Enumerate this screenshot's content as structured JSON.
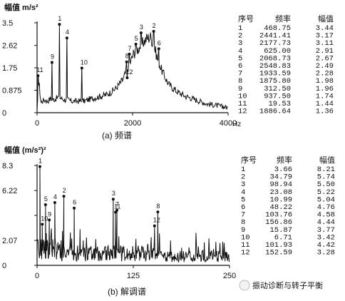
{
  "chart_data": [
    {
      "type": "line",
      "ylabel": "幅值 m/s²",
      "xlabel": "Hz",
      "caption": "(a) 频谱",
      "xlim": [
        0,
        4000
      ],
      "ylim": [
        0,
        3.5
      ],
      "xticks": [
        0,
        2000,
        4000
      ],
      "yticks": [
        0,
        0.875,
        1.75,
        2.62,
        3.5
      ],
      "ytick_labels": [
        "0",
        "0.875",
        "1.75",
        "2.62",
        "3.5"
      ],
      "table": {
        "headers": [
          "序号",
          "频率",
          "幅值"
        ],
        "rows": [
          [
            "1",
            "468.75",
            "3.44"
          ],
          [
            "2",
            "2441.41",
            "3.17"
          ],
          [
            "3",
            "2177.73",
            "3.11"
          ],
          [
            "4",
            "625.00",
            "2.91"
          ],
          [
            "5",
            "2068.73",
            "2.67"
          ],
          [
            "6",
            "2548.83",
            "2.49"
          ],
          [
            "7",
            "1933.59",
            "2.28"
          ],
          [
            "8",
            "1875.80",
            "1.98"
          ],
          [
            "9",
            "312.50",
            "1.96"
          ],
          [
            "10",
            "937.50",
            "1.74"
          ],
          [
            "11",
            "19.53",
            "1.44"
          ],
          [
            "12",
            "1886.64",
            "1.36"
          ]
        ]
      },
      "peaks": [
        {
          "label": "1",
          "x": 468.75,
          "y": 3.44
        },
        {
          "label": "2",
          "x": 2441.41,
          "y": 3.17
        },
        {
          "label": "3",
          "x": 2177.73,
          "y": 3.11
        },
        {
          "label": "4",
          "x": 625.0,
          "y": 2.91
        },
        {
          "label": "5",
          "x": 2068.73,
          "y": 2.67
        },
        {
          "label": "6",
          "x": 2548.83,
          "y": 2.49
        },
        {
          "label": "7",
          "x": 1933.59,
          "y": 2.28
        },
        {
          "label": "8",
          "x": 1875.8,
          "y": 1.98
        },
        {
          "label": "9",
          "x": 312.5,
          "y": 1.96
        },
        {
          "label": "10",
          "x": 937.5,
          "y": 1.74
        },
        {
          "label": "11",
          "x": 19.53,
          "y": 1.44
        },
        {
          "label": "12",
          "x": 1886.64,
          "y": 1.36
        }
      ],
      "baseline": [
        [
          0,
          0.05
        ],
        [
          40,
          1.2
        ],
        [
          80,
          0.4
        ],
        [
          150,
          0.5
        ],
        [
          220,
          0.45
        ],
        [
          280,
          0.55
        ],
        [
          330,
          0.5
        ],
        [
          400,
          0.55
        ],
        [
          440,
          0.6
        ],
        [
          520,
          0.55
        ],
        [
          580,
          0.5
        ],
        [
          660,
          0.5
        ],
        [
          720,
          0.45
        ],
        [
          800,
          0.45
        ],
        [
          870,
          0.45
        ],
        [
          980,
          0.45
        ],
        [
          1060,
          0.5
        ],
        [
          1150,
          0.55
        ],
        [
          1250,
          0.6
        ],
        [
          1350,
          0.65
        ],
        [
          1450,
          0.7
        ],
        [
          1550,
          0.8
        ],
        [
          1650,
          0.95
        ],
        [
          1720,
          1.1
        ],
        [
          1800,
          1.3
        ],
        [
          1960,
          2.0
        ],
        [
          2020,
          2.3
        ],
        [
          2120,
          2.5
        ],
        [
          2230,
          2.75
        ],
        [
          2300,
          2.9
        ],
        [
          2380,
          2.95
        ],
        [
          2480,
          2.4
        ],
        [
          2520,
          2.1
        ],
        [
          2600,
          1.7
        ],
        [
          2650,
          1.5
        ],
        [
          2700,
          1.3
        ],
        [
          2760,
          1.1
        ],
        [
          2850,
          0.95
        ],
        [
          2950,
          0.8
        ],
        [
          3100,
          0.65
        ],
        [
          3250,
          0.55
        ],
        [
          3400,
          0.45
        ],
        [
          3550,
          0.35
        ],
        [
          3700,
          0.3
        ],
        [
          3850,
          0.25
        ],
        [
          4000,
          0.2
        ]
      ]
    },
    {
      "type": "line",
      "ylabel": "幅值 (m/s²)²",
      "caption": "(b) 解调谱",
      "xlim": [
        0,
        250
      ],
      "ylim": [
        0,
        8.3
      ],
      "xticks": [
        0,
        125,
        250
      ],
      "yticks": [
        0,
        2.07,
        4.15,
        6.22,
        8.3
      ],
      "ytick_labels": [
        "0",
        "2.07",
        "",
        "6.22",
        "8.3"
      ],
      "table": {
        "headers": [
          "序号",
          "频率",
          "幅值"
        ],
        "rows": [
          [
            "1",
            "3.66",
            "8.21"
          ],
          [
            "2",
            "34.79",
            "5.74"
          ],
          [
            "3",
            "98.94",
            "5.50"
          ],
          [
            "4",
            "23.08",
            "5.22"
          ],
          [
            "5",
            "10.99",
            "5.04"
          ],
          [
            "6",
            "48.22",
            "4.76"
          ],
          [
            "7",
            "103.76",
            "4.58"
          ],
          [
            "8",
            "156.86",
            "4.44"
          ],
          [
            "9",
            "15.87",
            "3.77"
          ],
          [
            "10",
            "6.71",
            "3.42"
          ],
          [
            "11",
            "101.93",
            "4.42"
          ],
          [
            "12",
            "152.59",
            "3.28"
          ]
        ]
      },
      "peaks": [
        {
          "label": "1",
          "x": 3.66,
          "y": 8.21
        },
        {
          "label": "2",
          "x": 34.79,
          "y": 5.74
        },
        {
          "label": "3",
          "x": 98.94,
          "y": 5.5
        },
        {
          "label": "4",
          "x": 23.08,
          "y": 5.22
        },
        {
          "label": "5",
          "x": 10.99,
          "y": 5.04
        },
        {
          "label": "6",
          "x": 48.22,
          "y": 4.76
        },
        {
          "label": "7",
          "x": 103.76,
          "y": 4.58
        },
        {
          "label": "8",
          "x": 156.86,
          "y": 4.44
        },
        {
          "label": "9",
          "x": 15.87,
          "y": 3.77
        },
        {
          "label": "10",
          "x": 6.71,
          "y": 3.42
        },
        {
          "label": "11",
          "x": 101.93,
          "y": 4.42
        },
        {
          "label": "12",
          "x": 152.59,
          "y": 3.28
        }
      ]
    }
  ],
  "watermark": "振动诊断与转子平衡"
}
